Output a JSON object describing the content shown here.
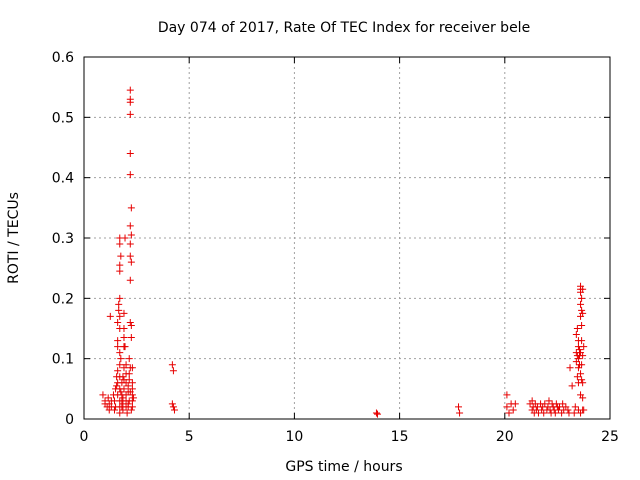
{
  "chart_data": {
    "type": "scatter",
    "title": "Day 074 of 2017, Rate Of TEC Index for receiver bele",
    "xlabel": "GPS time / hours",
    "ylabel": "ROTI / TECUs",
    "xlim": [
      0,
      25
    ],
    "ylim": [
      0,
      0.6
    ],
    "x_ticks": [
      "0",
      "5",
      "10",
      "15",
      "20",
      "25"
    ],
    "y_ticks": [
      "0",
      "0.1",
      "0.2",
      "0.3",
      "0.4",
      "0.5",
      "0.6"
    ],
    "x_tick_values": [
      0,
      5,
      10,
      15,
      20,
      25
    ],
    "y_tick_values": [
      0,
      0.1,
      0.2,
      0.3,
      0.4,
      0.5,
      0.6
    ],
    "grid": true,
    "grid_style": "dotted",
    "marker": "plus",
    "color": "#e60000",
    "series": [
      {
        "points": [
          [
            0.9,
            0.04
          ],
          [
            1.0,
            0.03
          ],
          [
            1.0,
            0.025
          ],
          [
            1.1,
            0.02
          ],
          [
            1.15,
            0.035
          ],
          [
            1.2,
            0.025
          ],
          [
            1.3,
            0.03
          ],
          [
            1.3,
            0.02
          ],
          [
            1.2,
            0.015
          ],
          [
            1.25,
            0.17
          ],
          [
            1.4,
            0.04
          ],
          [
            1.45,
            0.03
          ],
          [
            1.5,
            0.02
          ],
          [
            1.5,
            0.05
          ],
          [
            1.55,
            0.07
          ],
          [
            1.6,
            0.08
          ],
          [
            1.6,
            0.06
          ],
          [
            1.6,
            0.04
          ],
          [
            1.6,
            0.12
          ],
          [
            1.6,
            0.13
          ],
          [
            1.6,
            0.16
          ],
          [
            1.65,
            0.18
          ],
          [
            1.65,
            0.19
          ],
          [
            1.7,
            0.2
          ],
          [
            1.7,
            0.17
          ],
          [
            1.7,
            0.15
          ],
          [
            1.7,
            0.11
          ],
          [
            1.7,
            0.09
          ],
          [
            1.7,
            0.07
          ],
          [
            1.7,
            0.05
          ],
          [
            1.7,
            0.03
          ],
          [
            1.7,
            0.02
          ],
          [
            1.7,
            0.01
          ],
          [
            1.7,
            0.3
          ],
          [
            1.7,
            0.29
          ],
          [
            1.7,
            0.255
          ],
          [
            1.7,
            0.245
          ],
          [
            1.75,
            0.27
          ],
          [
            1.75,
            0.1
          ],
          [
            1.8,
            0.06
          ],
          [
            1.8,
            0.04
          ],
          [
            1.8,
            0.03
          ],
          [
            1.8,
            0.02
          ],
          [
            1.85,
            0.015
          ],
          [
            1.85,
            0.025
          ],
          [
            1.85,
            0.035
          ],
          [
            1.9,
            0.05
          ],
          [
            1.9,
            0.065
          ],
          [
            1.9,
            0.085
          ],
          [
            1.9,
            0.12
          ],
          [
            1.9,
            0.135
          ],
          [
            1.9,
            0.15
          ],
          [
            1.9,
            0.175
          ],
          [
            1.95,
            0.3
          ],
          [
            1.95,
            0.12
          ],
          [
            2.0,
            0.09
          ],
          [
            2.0,
            0.06
          ],
          [
            2.0,
            0.04
          ],
          [
            2.0,
            0.03
          ],
          [
            2.0,
            0.02
          ],
          [
            2.05,
            0.01
          ],
          [
            2.1,
            0.025
          ],
          [
            2.1,
            0.045
          ],
          [
            2.1,
            0.055
          ],
          [
            2.15,
            0.065
          ],
          [
            2.15,
            0.075
          ],
          [
            2.15,
            0.1
          ],
          [
            2.2,
            0.545
          ],
          [
            2.2,
            0.53
          ],
          [
            2.2,
            0.525
          ],
          [
            2.2,
            0.505
          ],
          [
            2.2,
            0.44
          ],
          [
            2.2,
            0.405
          ],
          [
            2.25,
            0.35
          ],
          [
            2.2,
            0.32
          ],
          [
            2.25,
            0.305
          ],
          [
            2.2,
            0.29
          ],
          [
            2.2,
            0.27
          ],
          [
            2.25,
            0.26
          ],
          [
            2.2,
            0.23
          ],
          [
            2.2,
            0.16
          ],
          [
            2.25,
            0.155
          ],
          [
            2.25,
            0.135
          ],
          [
            2.2,
            0.085
          ],
          [
            2.3,
            0.085
          ],
          [
            2.3,
            0.06
          ],
          [
            2.3,
            0.05
          ],
          [
            2.3,
            0.04
          ],
          [
            2.3,
            0.03
          ],
          [
            2.3,
            0.02
          ],
          [
            2.35,
            0.035
          ],
          [
            2.2,
            0.045
          ],
          [
            2.15,
            0.03
          ],
          [
            2.1,
            0.02
          ],
          [
            2.25,
            0.015
          ],
          [
            1.75,
            0.045
          ],
          [
            1.55,
            0.055
          ],
          [
            1.45,
            0.015
          ],
          [
            1.85,
            0.07
          ],
          [
            2.0,
            0.075
          ],
          [
            4.2,
            0.09
          ],
          [
            4.25,
            0.08
          ],
          [
            4.2,
            0.025
          ],
          [
            4.25,
            0.02
          ],
          [
            4.3,
            0.015
          ],
          [
            13.9,
            0.01
          ],
          [
            13.95,
            0.008
          ],
          [
            17.8,
            0.02
          ],
          [
            17.85,
            0.01
          ],
          [
            20.1,
            0.04
          ],
          [
            20.1,
            0.02
          ],
          [
            20.2,
            0.01
          ],
          [
            20.3,
            0.025
          ],
          [
            20.4,
            0.015
          ],
          [
            20.5,
            0.025
          ],
          [
            21.2,
            0.025
          ],
          [
            21.3,
            0.03
          ],
          [
            21.3,
            0.015
          ],
          [
            21.35,
            0.02
          ],
          [
            21.4,
            0.01
          ],
          [
            21.45,
            0.025
          ],
          [
            21.5,
            0.015
          ],
          [
            21.55,
            0.02
          ],
          [
            21.6,
            0.01
          ],
          [
            21.7,
            0.025
          ],
          [
            21.75,
            0.015
          ],
          [
            21.8,
            0.02
          ],
          [
            21.85,
            0.01
          ],
          [
            21.9,
            0.025
          ],
          [
            22.0,
            0.015
          ],
          [
            22.05,
            0.02
          ],
          [
            22.1,
            0.03
          ],
          [
            22.15,
            0.015
          ],
          [
            22.2,
            0.01
          ],
          [
            22.25,
            0.025
          ],
          [
            22.3,
            0.02
          ],
          [
            22.35,
            0.015
          ],
          [
            22.4,
            0.01
          ],
          [
            22.45,
            0.025
          ],
          [
            22.5,
            0.02
          ],
          [
            22.55,
            0.015
          ],
          [
            22.6,
            0.02
          ],
          [
            22.7,
            0.01
          ],
          [
            22.75,
            0.025
          ],
          [
            22.8,
            0.015
          ],
          [
            22.9,
            0.02
          ],
          [
            23.0,
            0.015
          ],
          [
            23.05,
            0.01
          ],
          [
            23.1,
            0.085
          ],
          [
            23.2,
            0.055
          ],
          [
            23.3,
            0.01
          ],
          [
            23.35,
            0.02
          ],
          [
            23.4,
            0.14
          ],
          [
            23.4,
            0.11
          ],
          [
            23.4,
            0.095
          ],
          [
            23.45,
            0.15
          ],
          [
            23.45,
            0.105
          ],
          [
            23.45,
            0.07
          ],
          [
            23.5,
            0.13
          ],
          [
            23.5,
            0.12
          ],
          [
            23.5,
            0.1
          ],
          [
            23.5,
            0.085
          ],
          [
            23.5,
            0.06
          ],
          [
            23.5,
            0.015
          ],
          [
            23.55,
            0.115
          ],
          [
            23.55,
            0.105
          ],
          [
            23.55,
            0.09
          ],
          [
            23.6,
            0.22
          ],
          [
            23.6,
            0.215
          ],
          [
            23.6,
            0.21
          ],
          [
            23.6,
            0.19
          ],
          [
            23.6,
            0.17
          ],
          [
            23.6,
            0.11
          ],
          [
            23.6,
            0.075
          ],
          [
            23.6,
            0.04
          ],
          [
            23.6,
            0.01
          ],
          [
            23.65,
            0.2
          ],
          [
            23.65,
            0.18
          ],
          [
            23.65,
            0.155
          ],
          [
            23.65,
            0.13
          ],
          [
            23.65,
            0.09
          ],
          [
            23.65,
            0.065
          ],
          [
            23.7,
            0.215
          ],
          [
            23.7,
            0.175
          ],
          [
            23.7,
            0.105
          ],
          [
            23.7,
            0.06
          ],
          [
            23.7,
            0.035
          ],
          [
            23.7,
            0.015
          ],
          [
            23.75,
            0.015
          ],
          [
            23.75,
            0.12
          ]
        ]
      }
    ]
  }
}
